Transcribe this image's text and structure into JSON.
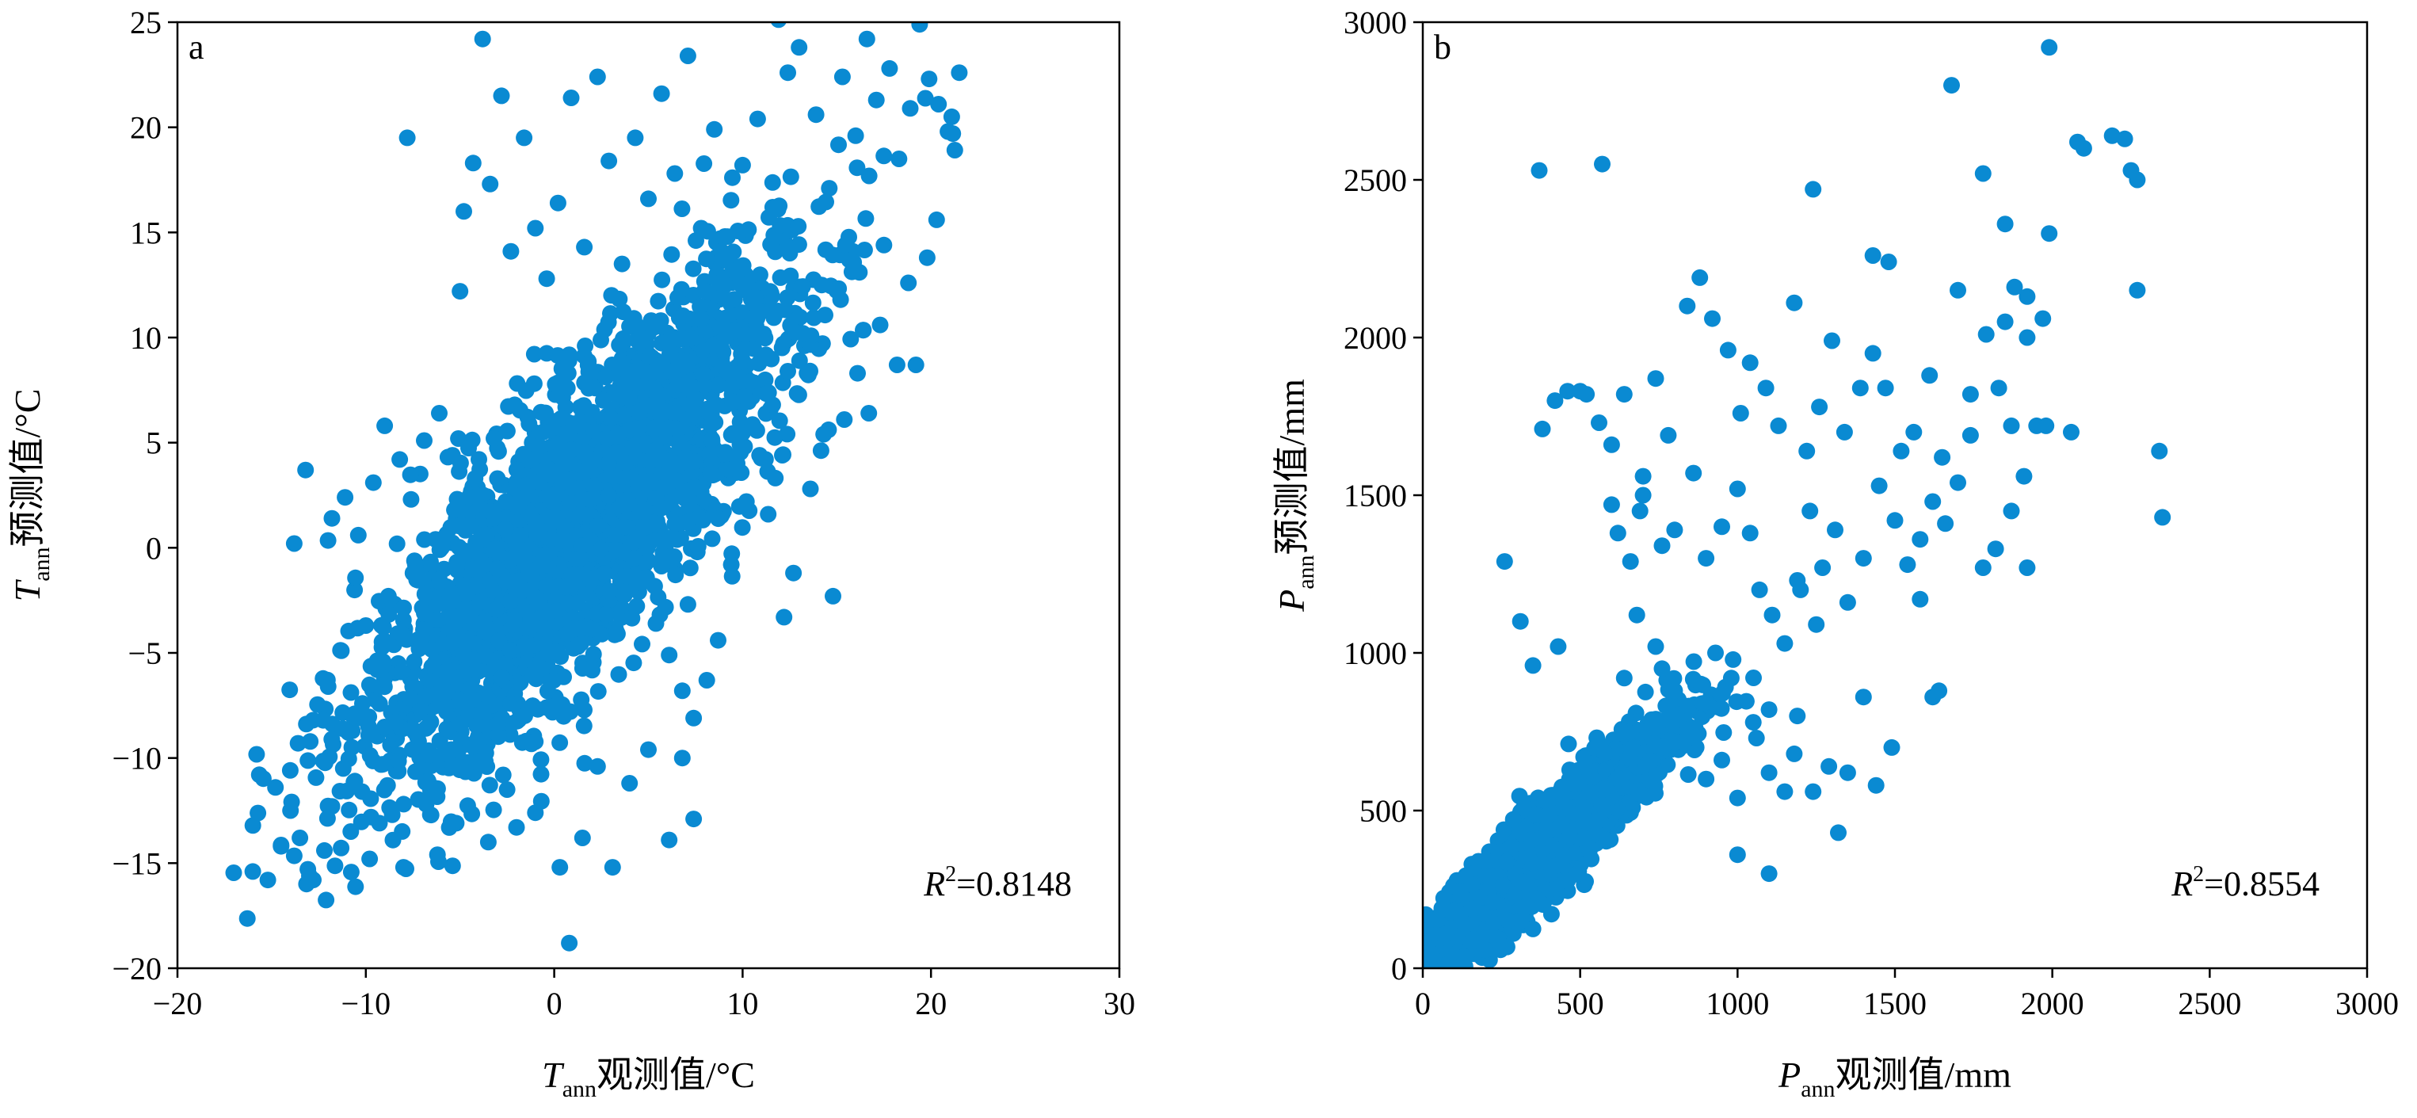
{
  "colors": {
    "points": "#0a8ad2",
    "axes": "#000000",
    "background": "#ffffff"
  },
  "chart_data": [
    {
      "type": "scatter",
      "panel_label": "a",
      "xlabel": {
        "var": "T",
        "sub": "ann",
        "text": "观测值/°C"
      },
      "ylabel": {
        "var": "T",
        "sub": "ann",
        "text": "预测值/°C"
      },
      "xlim": [
        -20,
        30
      ],
      "ylim": [
        -20,
        25
      ],
      "xticks": [
        -20,
        -10,
        0,
        10,
        20,
        30
      ],
      "yticks": [
        -20,
        -15,
        -10,
        -5,
        0,
        5,
        10,
        15,
        20,
        25
      ],
      "xtick_labels": [
        "−20",
        "−10",
        "0",
        "10",
        "20",
        "30"
      ],
      "ytick_labels": [
        "−20",
        "−15",
        "−10",
        "−5",
        "0",
        "5",
        "10",
        "15",
        "20",
        "25"
      ],
      "annotation": {
        "var": "R",
        "sup": "2",
        "text": "=0.8148"
      },
      "r_squared": 0.8148,
      "points": [
        [
          -16,
          -15.4
        ],
        [
          -15.2,
          -15.8
        ],
        [
          -14.5,
          -14.2
        ],
        [
          -14,
          -12.5
        ],
        [
          -13.5,
          -13.8
        ],
        [
          -13,
          -15.6
        ],
        [
          -12.2,
          -14.4
        ],
        [
          -11.8,
          -12.3
        ],
        [
          -11.2,
          -10.5
        ],
        [
          -10.8,
          -13.5
        ],
        [
          -10.2,
          -11.6
        ],
        [
          -9.8,
          -14.8
        ],
        [
          -9.1,
          -10.3
        ],
        [
          -8.6,
          -12.7
        ],
        [
          -8,
          -15.2
        ],
        [
          -7.4,
          -8.7
        ],
        [
          -6.8,
          -12.2
        ],
        [
          -6.2,
          -14.6
        ],
        [
          -5.7,
          -9.8
        ],
        [
          -5.2,
          -13.1
        ],
        [
          -4.6,
          -7.3
        ],
        [
          -4.1,
          -10.2
        ],
        [
          -3.5,
          -14
        ],
        [
          -3,
          -8.4
        ],
        [
          -2.5,
          -11.5
        ],
        [
          -2,
          -13.3
        ],
        [
          -1.5,
          -9.2
        ],
        [
          -1,
          -12.6
        ],
        [
          -0.4,
          -7.6
        ],
        [
          0.3,
          -15.2
        ],
        [
          0.8,
          -18.8
        ],
        [
          1.5,
          -13.8
        ],
        [
          2.3,
          -10.4
        ],
        [
          3.1,
          -15.2
        ],
        [
          4,
          -11.2
        ],
        [
          5,
          -9.6
        ],
        [
          6.1,
          -13.9
        ],
        [
          6.8,
          -10
        ],
        [
          7.4,
          -12.9
        ],
        [
          -14.8,
          -11.4
        ],
        [
          -13.6,
          -9.3
        ],
        [
          -12.8,
          -8.2
        ],
        [
          -12,
          -6.6
        ],
        [
          -11.3,
          -4.9
        ],
        [
          -10.6,
          -7.9
        ],
        [
          -10,
          -3.7
        ],
        [
          -9.4,
          -5.8
        ],
        [
          -8.8,
          -2.3
        ],
        [
          -8.1,
          -4.1
        ],
        [
          -7.5,
          -1.2
        ],
        [
          -6.9,
          -3.1
        ],
        [
          -6.3,
          0.4
        ],
        [
          -5.8,
          -5.9
        ],
        [
          -5.3,
          1.8
        ],
        [
          -4.7,
          -2
        ],
        [
          -4.2,
          3.3
        ],
        [
          -3.7,
          -0.8
        ],
        [
          -3.2,
          5.2
        ],
        [
          -2.6,
          0.9
        ],
        [
          -2.1,
          6.8
        ],
        [
          -1.6,
          2.4
        ],
        [
          -13.8,
          0.2
        ],
        [
          -13.2,
          3.7
        ],
        [
          -11.8,
          1.4
        ],
        [
          -11.1,
          2.4
        ],
        [
          -10.4,
          0.6
        ],
        [
          -9.6,
          3.1
        ],
        [
          -9,
          5.8
        ],
        [
          -8.2,
          4.2
        ],
        [
          -7.6,
          2.3
        ],
        [
          -6.9,
          5.1
        ],
        [
          -6.1,
          6.4
        ],
        [
          -5.4,
          4.4
        ],
        [
          -7.8,
          19.5
        ],
        [
          -5,
          12.2
        ],
        [
          -4.8,
          16
        ],
        [
          -4.3,
          18.3
        ],
        [
          -3.8,
          24.2
        ],
        [
          -3.4,
          17.3
        ],
        [
          -2.8,
          21.5
        ],
        [
          -2.3,
          14.1
        ],
        [
          -1.6,
          19.5
        ],
        [
          -1,
          15.2
        ],
        [
          -0.4,
          12.8
        ],
        [
          0.2,
          16.4
        ],
        [
          0.9,
          21.4
        ],
        [
          1.6,
          14.3
        ],
        [
          2.3,
          22.4
        ],
        [
          2.9,
          18.4
        ],
        [
          3.6,
          13.5
        ],
        [
          4.3,
          19.5
        ],
        [
          5,
          16.6
        ],
        [
          5.7,
          21.6
        ],
        [
          6.4,
          17.8
        ],
        [
          7.1,
          23.4
        ],
        [
          7.8,
          15.2
        ],
        [
          8.5,
          19.9
        ],
        [
          9.2,
          14.8
        ],
        [
          10,
          18.2
        ],
        [
          10.8,
          20.4
        ],
        [
          11.6,
          16.2
        ],
        [
          12.4,
          22.6
        ],
        [
          13,
          23.8
        ],
        [
          13.9,
          20.6
        ],
        [
          14.6,
          17.1
        ],
        [
          15.3,
          22.4
        ],
        [
          16,
          19.6
        ],
        [
          16.6,
          24.2
        ],
        [
          17.1,
          21.3
        ],
        [
          17.8,
          22.8
        ],
        [
          18.3,
          18.5
        ],
        [
          18.9,
          20.9
        ],
        [
          19.4,
          24.9
        ],
        [
          19.9,
          22.3
        ],
        [
          20.4,
          21.1
        ],
        [
          20.9,
          19.8
        ],
        [
          21.5,
          22.6
        ],
        [
          21.1,
          20.5
        ],
        [
          12.2,
          -3.3
        ],
        [
          12.7,
          -1.2
        ],
        [
          13.6,
          2.8
        ],
        [
          14.3,
          5.4
        ],
        [
          14.8,
          -2.3
        ],
        [
          15.4,
          6.1
        ],
        [
          16.1,
          8.3
        ],
        [
          16.7,
          6.4
        ],
        [
          17.3,
          10.6
        ],
        [
          18.2,
          8.7
        ],
        [
          19.2,
          8.7
        ],
        [
          18.8,
          12.6
        ],
        [
          19.8,
          13.8
        ],
        [
          20.3,
          15.6
        ],
        [
          17.5,
          14.4
        ],
        [
          16.2,
          13.1
        ],
        [
          15.2,
          11.8
        ],
        [
          14.2,
          12.5
        ],
        [
          13.2,
          10.2
        ],
        [
          12.4,
          8.4
        ],
        [
          11.6,
          6.8
        ],
        [
          10.9,
          4.4
        ],
        [
          10.2,
          2.2
        ],
        [
          9.4,
          -0.8
        ],
        [
          8.7,
          -4.4
        ],
        [
          8.1,
          -6.3
        ],
        [
          7.4,
          -8.1
        ],
        [
          6.8,
          -6.8
        ],
        [
          6.1,
          -5.1
        ],
        [
          5.4,
          -3.6
        ]
      ],
      "cluster": {
        "x_mean": 1.2,
        "y_mean": 1.0,
        "x_sd": 5.6,
        "y_sd": 6.0,
        "corr": 0.82,
        "count": 2600
      }
    },
    {
      "type": "scatter",
      "panel_label": "b",
      "xlabel": {
        "var": "P",
        "sub": "ann",
        "text": "观测值/mm"
      },
      "ylabel": {
        "var": "P",
        "sub": "ann",
        "text": "预测值/mm"
      },
      "xlim": [
        0,
        3000
      ],
      "ylim": [
        0,
        3000
      ],
      "xticks": [
        0,
        500,
        1000,
        1500,
        2000,
        2500,
        3000
      ],
      "yticks": [
        0,
        500,
        1000,
        1500,
        2000,
        2500,
        3000
      ],
      "xtick_labels": [
        "0",
        "500",
        "1000",
        "1500",
        "2000",
        "2500",
        "3000"
      ],
      "ytick_labels": [
        "0",
        "500",
        "1000",
        "1500",
        "2000",
        "2500",
        "3000"
      ],
      "annotation": {
        "var": "R",
        "sup": "2",
        "text": "=0.8554"
      },
      "r_squared": 0.8554,
      "points": [
        [
          370,
          2530
        ],
        [
          570,
          2550
        ],
        [
          1240,
          2470
        ],
        [
          1430,
          2260
        ],
        [
          1480,
          2240
        ],
        [
          1680,
          2800
        ],
        [
          1780,
          2520
        ],
        [
          1990,
          2920
        ],
        [
          1990,
          2330
        ],
        [
          2080,
          2620
        ],
        [
          2100,
          2600
        ],
        [
          2190,
          2640
        ],
        [
          2230,
          2630
        ],
        [
          2250,
          2530
        ],
        [
          2270,
          2500
        ],
        [
          2270,
          2150
        ],
        [
          2340,
          1640
        ],
        [
          2350,
          1430
        ],
        [
          1850,
          2360
        ],
        [
          1850,
          2050
        ],
        [
          1880,
          2160
        ],
        [
          1920,
          2130
        ],
        [
          1920,
          2000
        ],
        [
          1970,
          2060
        ],
        [
          1980,
          1720
        ],
        [
          2060,
          1700
        ],
        [
          500,
          1830
        ],
        [
          560,
          1730
        ],
        [
          600,
          1660
        ],
        [
          640,
          1820
        ],
        [
          700,
          1560
        ],
        [
          740,
          1870
        ],
        [
          780,
          1690
        ],
        [
          840,
          2100
        ],
        [
          880,
          2190
        ],
        [
          920,
          2060
        ],
        [
          970,
          1960
        ],
        [
          1010,
          1760
        ],
        [
          1040,
          1920
        ],
        [
          1090,
          1840
        ],
        [
          1130,
          1720
        ],
        [
          1180,
          2110
        ],
        [
          1220,
          1640
        ],
        [
          1260,
          1780
        ],
        [
          1300,
          1990
        ],
        [
          1340,
          1700
        ],
        [
          1390,
          1840
        ],
        [
          1430,
          1950
        ],
        [
          1470,
          1840
        ],
        [
          1520,
          1640
        ],
        [
          1560,
          1700
        ],
        [
          1610,
          1880
        ],
        [
          1650,
          1620
        ],
        [
          1700,
          2150
        ],
        [
          1740,
          1820
        ],
        [
          1790,
          2010
        ],
        [
          1830,
          1840
        ],
        [
          1870,
          1720
        ],
        [
          1910,
          1560
        ],
        [
          1950,
          1720
        ],
        [
          520,
          1820
        ],
        [
          460,
          1830
        ],
        [
          420,
          1800
        ],
        [
          380,
          1710
        ],
        [
          620,
          1380
        ],
        [
          660,
          1290
        ],
        [
          700,
          1500
        ],
        [
          760,
          1340
        ],
        [
          800,
          1390
        ],
        [
          860,
          1570
        ],
        [
          900,
          1300
        ],
        [
          950,
          1400
        ],
        [
          1000,
          1520
        ],
        [
          1040,
          1380
        ],
        [
          1070,
          1200
        ],
        [
          1110,
          1120
        ],
        [
          1150,
          1030
        ],
        [
          1190,
          1230
        ],
        [
          1230,
          1450
        ],
        [
          1270,
          1270
        ],
        [
          1310,
          1390
        ],
        [
          1350,
          1160
        ],
        [
          1400,
          1300
        ],
        [
          1450,
          1530
        ],
        [
          1500,
          1420
        ],
        [
          1540,
          1280
        ],
        [
          1580,
          1360
        ],
        [
          1620,
          1480
        ],
        [
          1660,
          1410
        ],
        [
          1700,
          1540
        ],
        [
          1740,
          1690
        ],
        [
          1780,
          1270
        ],
        [
          1820,
          1330
        ],
        [
          1870,
          1450
        ],
        [
          1920,
          1270
        ],
        [
          600,
          1470
        ],
        [
          690,
          1450
        ],
        [
          260,
          1290
        ],
        [
          310,
          1100
        ],
        [
          350,
          960
        ],
        [
          430,
          1020
        ],
        [
          950,
          660
        ],
        [
          1000,
          540
        ],
        [
          1060,
          730
        ],
        [
          1100,
          300
        ],
        [
          1150,
          560
        ],
        [
          1190,
          800
        ],
        [
          1240,
          560
        ],
        [
          1290,
          640
        ],
        [
          1320,
          430
        ],
        [
          1350,
          620
        ],
        [
          1400,
          860
        ],
        [
          1440,
          580
        ],
        [
          1490,
          700
        ],
        [
          1620,
          860
        ],
        [
          1640,
          880
        ],
        [
          1580,
          1170
        ],
        [
          1200,
          1200
        ],
        [
          1250,
          1090
        ],
        [
          1100,
          820
        ],
        [
          1050,
          780
        ],
        [
          980,
          920
        ],
        [
          930,
          1000
        ],
        [
          890,
          840
        ],
        [
          850,
          760
        ],
        [
          800,
          880
        ],
        [
          760,
          950
        ],
        [
          740,
          1020
        ],
        [
          680,
          1120
        ],
        [
          640,
          920
        ],
        [
          1100,
          620
        ],
        [
          1180,
          680
        ],
        [
          1000,
          360
        ],
        [
          900,
          600
        ]
      ],
      "cluster": {
        "x_mean": 390,
        "y_mean": 380,
        "x_sd": 200,
        "y_sd": 200,
        "corr": 0.93,
        "count": 2200
      }
    }
  ]
}
